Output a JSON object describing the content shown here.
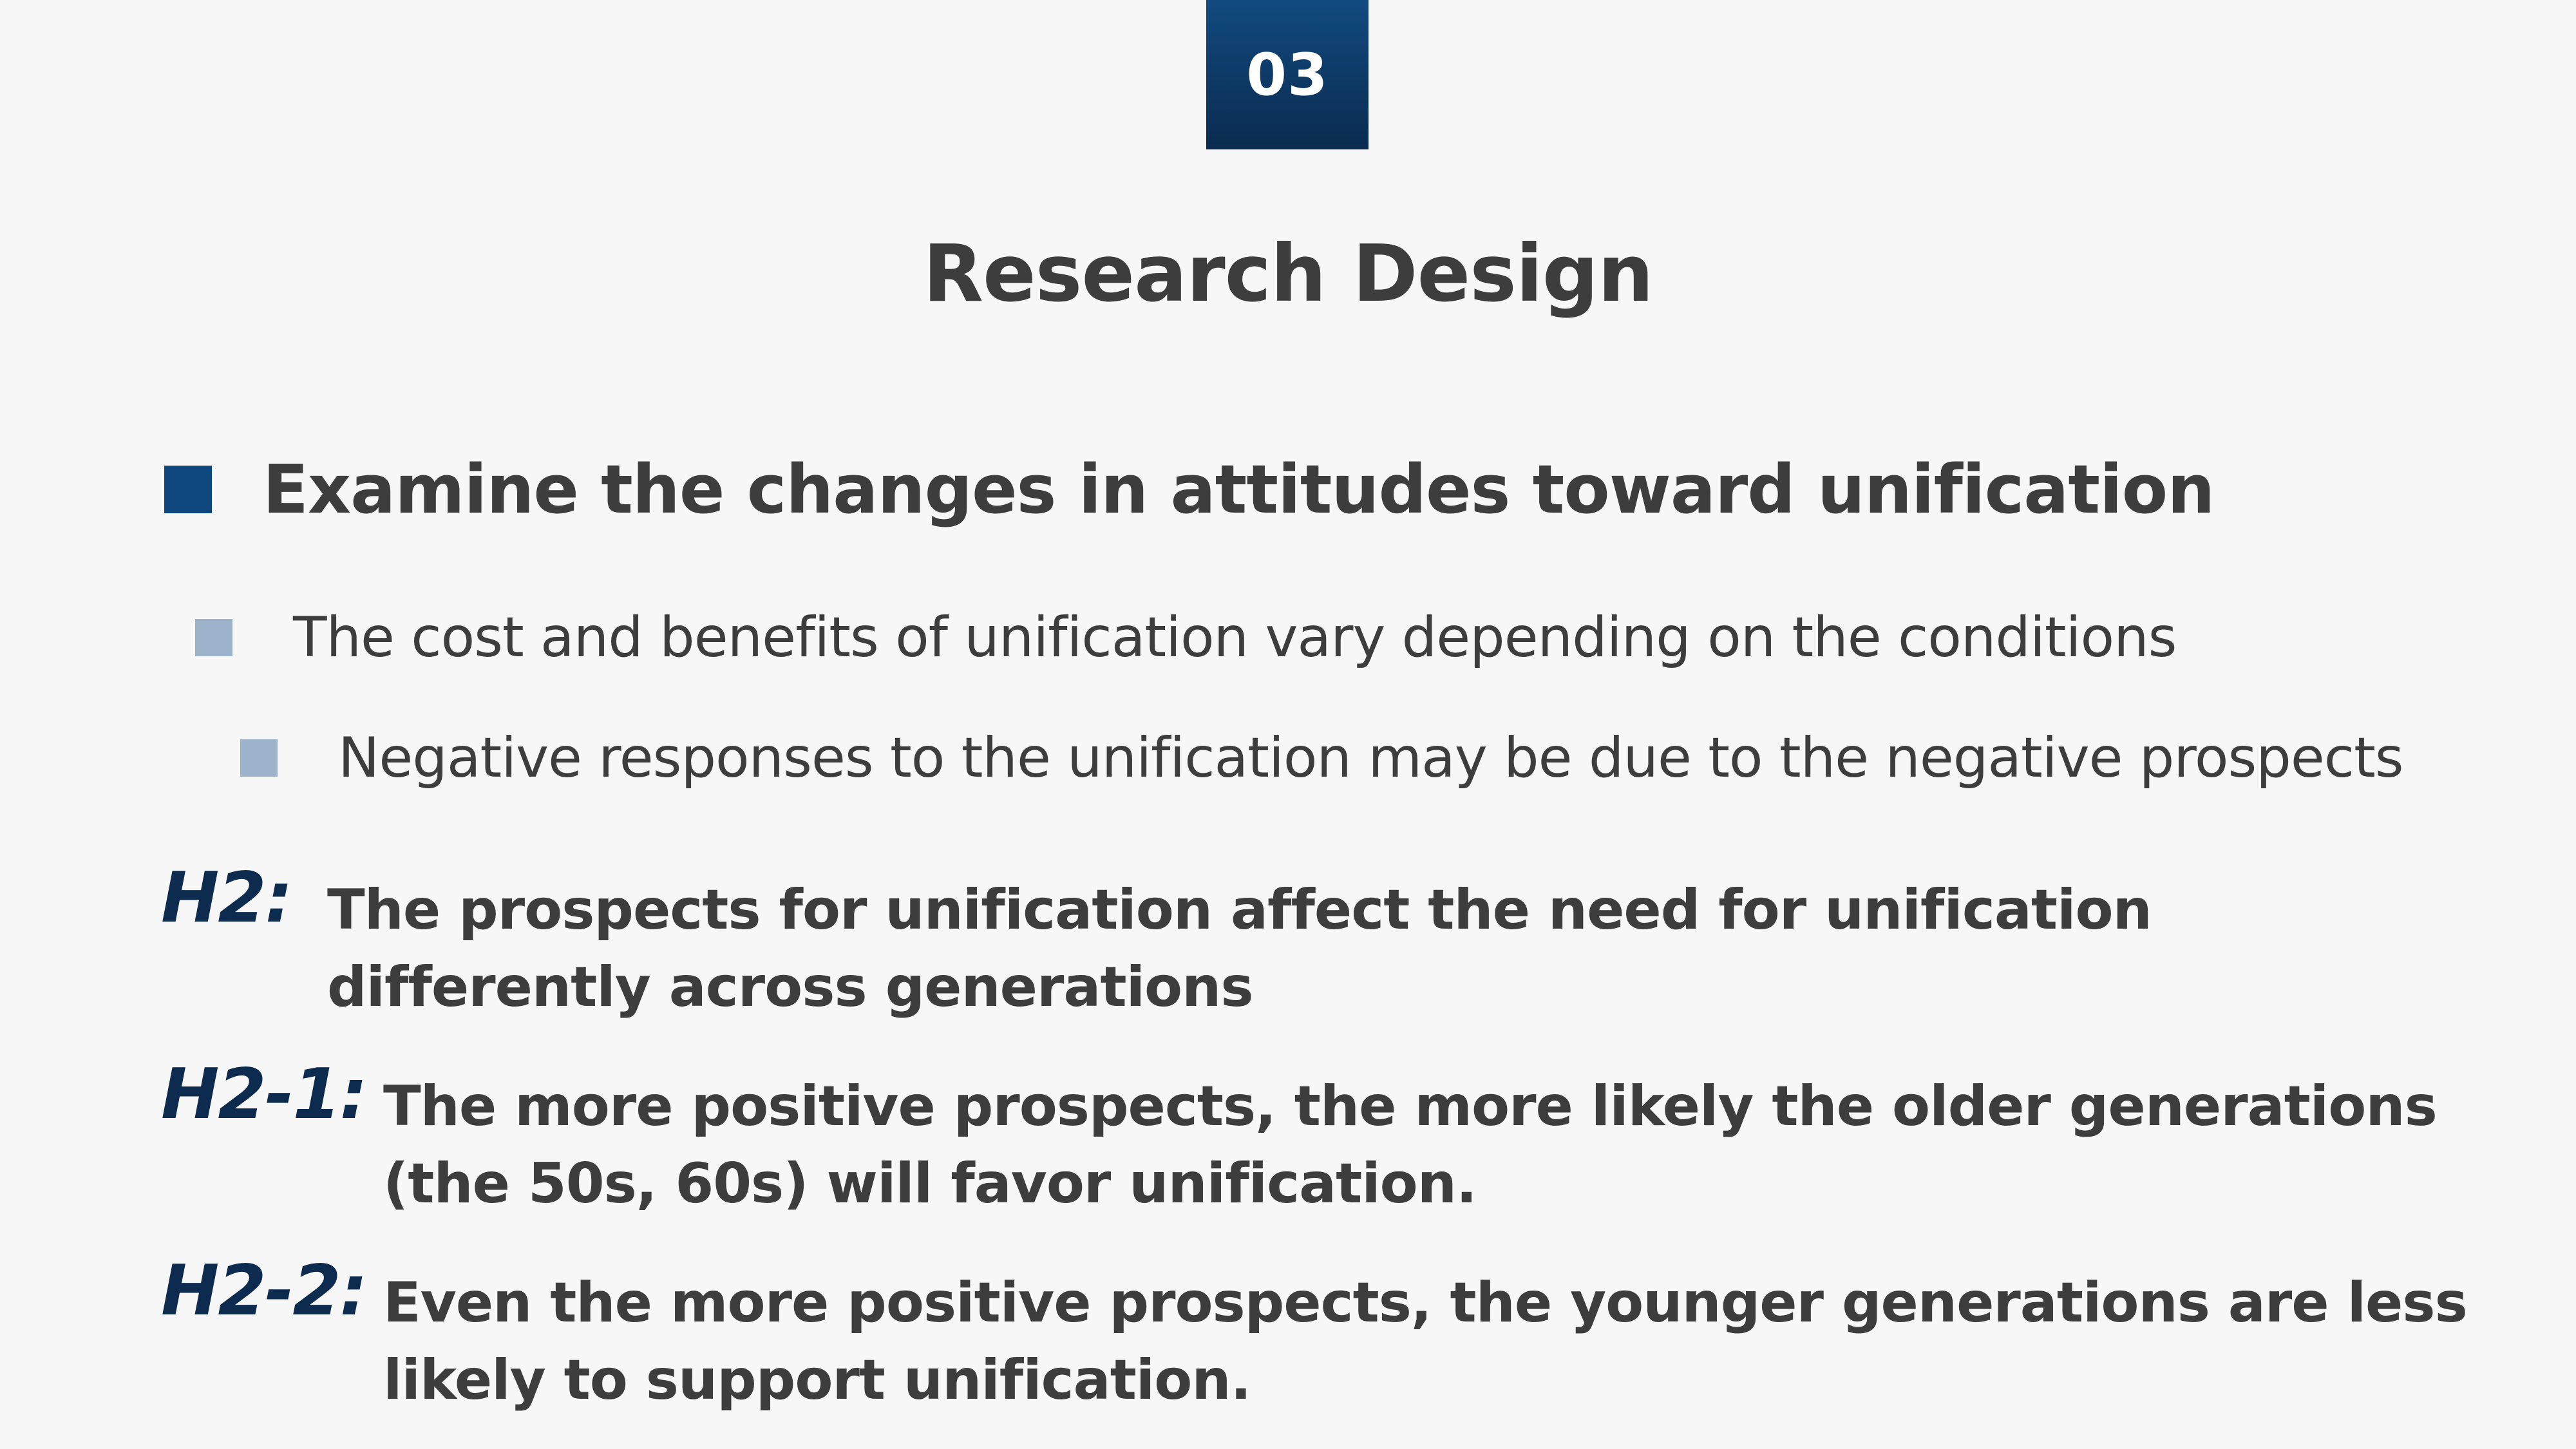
{
  "section": {
    "number": "03"
  },
  "title": "Research Design",
  "main_bullet": "Examine the changes in attitudes toward unification",
  "sub_bullets": [
    "The cost and benefits of unification vary depending on the conditions",
    "Negative responses to the unification may be due to the negative prospects"
  ],
  "hypotheses": [
    {
      "label": "H2:",
      "lines": [
        "The prospects for unification affect the need for unification",
        "differently across generations"
      ]
    },
    {
      "label": "H2-1:",
      "lines": [
        "The more positive prospects, the more likely the older generations",
        "(the 50s, 60s) will favor unification."
      ]
    },
    {
      "label": "H2-2:",
      "lines": [
        "Even the more positive prospects, the younger generations are less",
        "likely to support unification."
      ]
    }
  ],
  "colors": {
    "background": "#f7f7f7",
    "badge_top": "#124a80",
    "badge_bottom": "#0a2b4f",
    "main_bullet_square": "#0e477d",
    "sub_bullet_square": "#9db3cb",
    "hypothesis_label": "#0d2b4e",
    "text": "#3d3d3d"
  }
}
